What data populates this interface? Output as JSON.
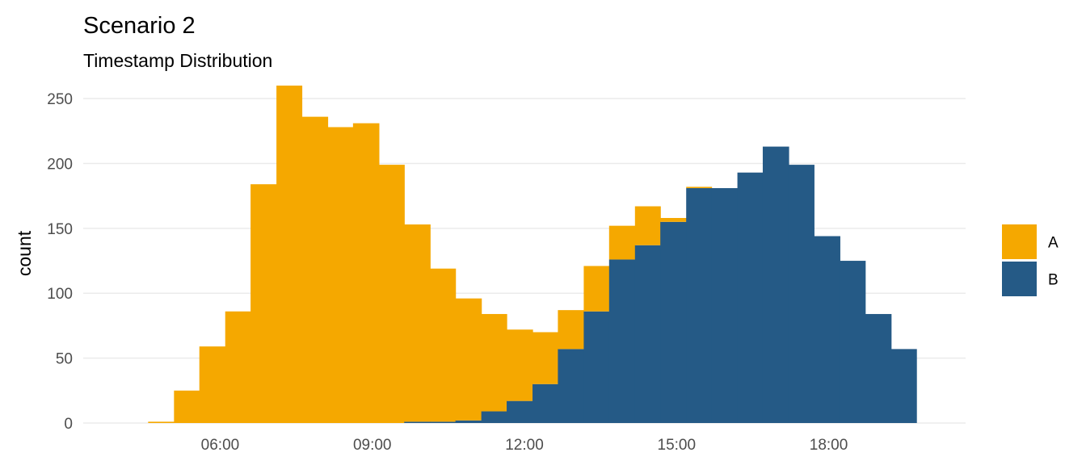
{
  "chart_data": {
    "type": "histogram",
    "stacked": true,
    "title": "Scenario 2",
    "subtitle": "Timestamp Distribution",
    "xlabel": "",
    "ylabel": "count",
    "x_unit": "hour of day",
    "xlim": [
      3.3,
      20.7
    ],
    "ylim": [
      0,
      265
    ],
    "x_ticks": [
      6,
      9,
      12,
      15,
      18
    ],
    "x_tick_labels": [
      "06:00",
      "09:00",
      "12:00",
      "15:00",
      "18:00"
    ],
    "y_ticks": [
      0,
      50,
      100,
      150,
      200,
      250
    ],
    "y_tick_labels": [
      "0",
      "50",
      "100",
      "150",
      "200",
      "250"
    ],
    "grid": true,
    "legend_position": "right",
    "bin_edges": [
      4.58,
      5.09,
      5.59,
      6.1,
      6.6,
      7.11,
      7.61,
      8.12,
      8.62,
      9.13,
      9.63,
      10.14,
      10.64,
      11.15,
      11.65,
      12.16,
      12.66,
      13.17,
      13.67,
      14.18,
      14.68,
      15.19,
      15.69,
      16.2,
      16.7,
      17.21,
      17.71,
      18.22,
      18.72,
      19.23,
      19.73
    ],
    "series": [
      {
        "name": "A",
        "color": "#F5A800",
        "values": [
          1,
          25,
          59,
          86,
          184,
          260,
          236,
          228,
          231,
          199,
          152,
          118,
          94,
          75,
          55,
          40,
          30,
          35,
          26,
          30,
          3,
          1,
          0,
          0,
          0,
          0,
          0,
          0,
          0,
          0
        ]
      },
      {
        "name": "B",
        "color": "#255A86",
        "values": [
          0,
          0,
          0,
          0,
          0,
          0,
          0,
          0,
          0,
          0,
          1,
          1,
          2,
          9,
          17,
          30,
          57,
          86,
          126,
          137,
          155,
          181,
          181,
          193,
          213,
          199,
          144,
          125,
          84,
          57
        ]
      }
    ]
  }
}
